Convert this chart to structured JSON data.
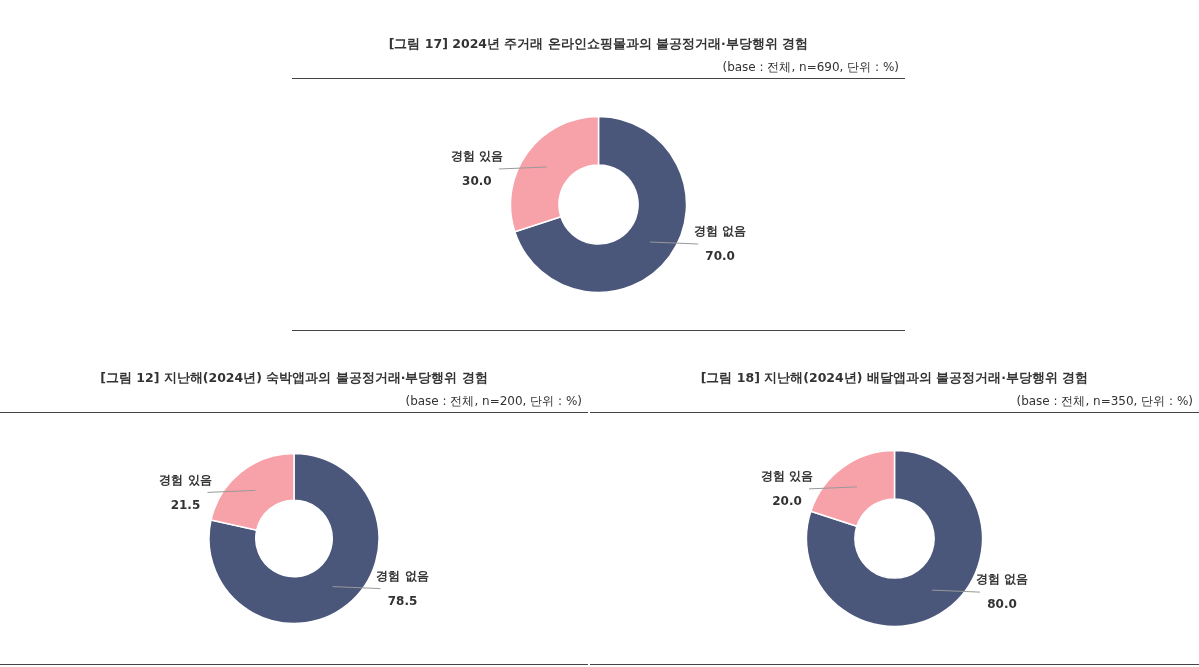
{
  "chart_data": [
    {
      "type": "donut",
      "title": "[그림 17] 2024년 주거래 온라인쇼핑몰과의 불공정거래·부당행위 경험",
      "subtitle": "(base : 전체, n=690, 단위 : %)",
      "categories": [
        "경험 없음",
        "경험 있음"
      ],
      "values": [
        70.0,
        30.0
      ],
      "value_labels": [
        "70.0",
        "30.0"
      ],
      "colors": [
        "#4a577b",
        "#f7a1a9"
      ],
      "legend": false
    },
    {
      "type": "donut",
      "title": "[그림 12] 지난해(2024년) 숙박앱과의 불공정거래·부당행위 경험",
      "subtitle": "(base : 전체, n=200, 단위 : %)",
      "categories": [
        "경험 없음",
        "경험 있음"
      ],
      "values": [
        78.5,
        21.5
      ],
      "value_labels": [
        "78.5",
        "21.5"
      ],
      "colors": [
        "#4a577b",
        "#f7a1a9"
      ],
      "legend": false
    },
    {
      "type": "donut",
      "title": "[그림 18] 지난해(2024년) 배달앱과의 불공정거래·부당행위 경험",
      "subtitle": "(base : 전체, n=350, 단위 : %)",
      "categories": [
        "경험 없음",
        "경험 있음"
      ],
      "values": [
        80.0,
        20.0
      ],
      "value_labels": [
        "80.0",
        "20.0"
      ],
      "colors": [
        "#4a577b",
        "#f7a1a9"
      ],
      "legend": false
    }
  ]
}
